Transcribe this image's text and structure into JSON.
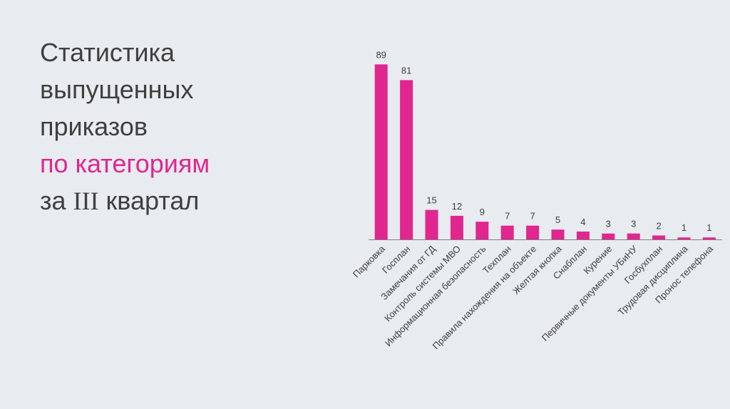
{
  "title": {
    "line1": "Статистика",
    "line2": "выпущенных",
    "line3": "приказов",
    "line4": "по категориям",
    "line5_prefix": "за",
    "line5_roman": "III",
    "line5_suffix": "квартал"
  },
  "colors": {
    "bar": "#e0268f",
    "text": "#3f3f3f",
    "axis": "#7f7f7f",
    "background": "#e8ebef"
  },
  "chart_data": {
    "type": "bar",
    "categories": [
      "Парковка",
      "Госплан",
      "Замечания от ГД",
      "Контроль системы МВО",
      "Информационная безопасность",
      "Техплан",
      "Правила нахождения на объекте",
      "Желтая кнопка",
      "Снабплан",
      "Курение",
      "Первичные документы УБиНУ",
      "Госбухплан",
      "Трудовая дисциплина",
      "Пронос телефона"
    ],
    "values": [
      89,
      81,
      15,
      12,
      9,
      7,
      7,
      5,
      4,
      3,
      3,
      2,
      1,
      1
    ],
    "ylim": [
      0,
      100
    ],
    "grid": false,
    "data_labels": true
  }
}
